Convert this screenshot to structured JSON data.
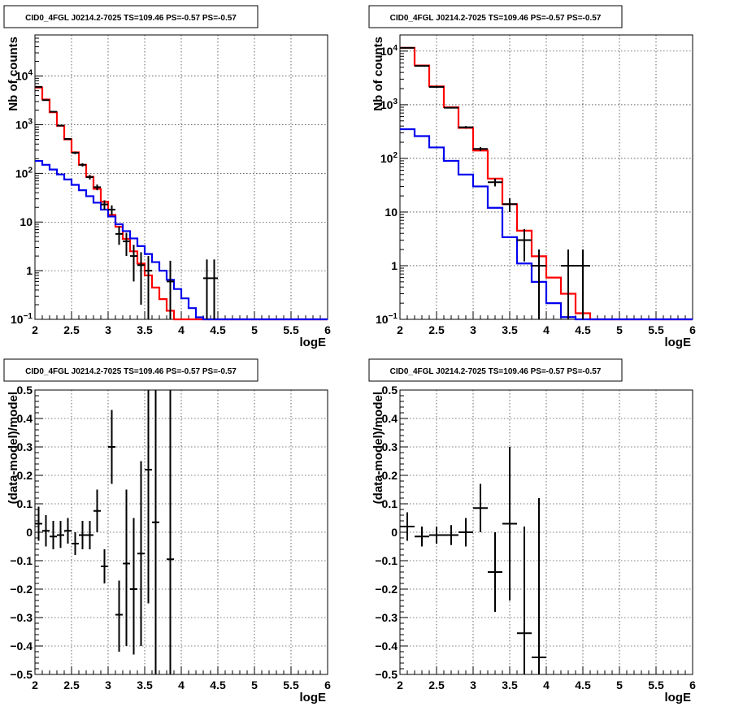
{
  "chart_data": [
    {
      "type": "histogram",
      "title": "CID0_4FGL J0214.2-7025 TS=109.46 PS=-0.57 PS=-0.57",
      "xlabel": "logE",
      "ylabel": "Nb of counts",
      "log_y": true,
      "xlim": [
        2,
        6
      ],
      "ylim": [
        0.1,
        70000
      ],
      "grid": true,
      "x_ticks": [
        "2",
        "2.5",
        "3",
        "3.5",
        "4",
        "4.5",
        "5",
        "5.5",
        "6"
      ],
      "y_ticks": [
        {
          "value": 0.1,
          "label": "10",
          "sup": "−1"
        },
        {
          "value": 1,
          "label": "1",
          "sup": ""
        },
        {
          "value": 10,
          "label": "10",
          "sup": ""
        },
        {
          "value": 100,
          "label": "10",
          "sup": "2"
        },
        {
          "value": 1000,
          "label": "10",
          "sup": "3"
        },
        {
          "value": 10000,
          "label": "10",
          "sup": "4"
        }
      ],
      "bin_edges": [
        2.0,
        2.1,
        2.2,
        2.3,
        2.4,
        2.5,
        2.6,
        2.7,
        2.8,
        2.9,
        3.0,
        3.1,
        3.2,
        3.3,
        3.4,
        3.5,
        3.6,
        3.7,
        3.8,
        3.9,
        4.0,
        4.1,
        4.2,
        4.3,
        4.4,
        4.5,
        4.6,
        4.7,
        4.8,
        4.9,
        5.0,
        5.1,
        5.2,
        5.3,
        5.4,
        5.5,
        5.6,
        5.7,
        5.8,
        5.9,
        6.0
      ],
      "series": [
        {
          "color": "#ff0000",
          "kind": "step",
          "values": [
            5800,
            3300,
            1800,
            950,
            500,
            270,
            150,
            85,
            48,
            26,
            14,
            8,
            4.5,
            2.5,
            1.4,
            0.8,
            0.45,
            0.26,
            0.15,
            0.09,
            0.09,
            0.09,
            0.09,
            0.09,
            0.09,
            0.09,
            0.09,
            0.09,
            0.09,
            0.09,
            0.09,
            0.09,
            0.09,
            0.09,
            0.09,
            0.09,
            0.09,
            0.09,
            0.09,
            0.09
          ]
        },
        {
          "color": "#0000ee",
          "kind": "step",
          "values": [
            180,
            150,
            120,
            95,
            75,
            58,
            45,
            34,
            25,
            18,
            13,
            9,
            6.5,
            4.6,
            3.2,
            2.2,
            1.5,
            1.0,
            0.65,
            0.42,
            0.27,
            0.17,
            0.11,
            0.1,
            0.1,
            0.1,
            0.1,
            0.1,
            0.1,
            0.1,
            0.1,
            0.1,
            0.1,
            0.1,
            0.1,
            0.1,
            0.1,
            0.1,
            0.1,
            0.1
          ]
        },
        {
          "color": "#000000",
          "kind": "points",
          "points": [
            {
              "x": 2.05,
              "y": 6000,
              "ylo": 5900,
              "yhi": 6100,
              "xerr": 0.05
            },
            {
              "x": 2.15,
              "y": 3200,
              "ylo": 3140,
              "yhi": 3260,
              "xerr": 0.05
            },
            {
              "x": 2.25,
              "y": 1850,
              "ylo": 1800,
              "yhi": 1900,
              "xerr": 0.05
            },
            {
              "x": 2.35,
              "y": 960,
              "ylo": 930,
              "yhi": 990,
              "xerr": 0.05
            },
            {
              "x": 2.45,
              "y": 510,
              "ylo": 488,
              "yhi": 532,
              "xerr": 0.05
            },
            {
              "x": 2.55,
              "y": 265,
              "ylo": 249,
              "yhi": 281,
              "xerr": 0.05
            },
            {
              "x": 2.65,
              "y": 150,
              "ylo": 138,
              "yhi": 162,
              "xerr": 0.05
            },
            {
              "x": 2.75,
              "y": 84,
              "ylo": 75,
              "yhi": 93,
              "xerr": 0.05
            },
            {
              "x": 2.85,
              "y": 52,
              "ylo": 45,
              "yhi": 59,
              "xerr": 0.05
            },
            {
              "x": 2.95,
              "y": 23,
              "ylo": 18,
              "yhi": 28,
              "xerr": 0.05
            },
            {
              "x": 3.05,
              "y": 18,
              "ylo": 14,
              "yhi": 22,
              "xerr": 0.05
            },
            {
              "x": 3.15,
              "y": 5.7,
              "ylo": 3.4,
              "yhi": 8.1,
              "xerr": 0.05
            },
            {
              "x": 3.25,
              "y": 4,
              "ylo": 2.0,
              "yhi": 6.0,
              "xerr": 0.05
            },
            {
              "x": 3.35,
              "y": 2,
              "ylo": 0.6,
              "yhi": 3.4,
              "xerr": 0.05
            },
            {
              "x": 3.45,
              "y": 1.3,
              "ylo": 0.2,
              "yhi": 2.4,
              "xerr": 0.05
            },
            {
              "x": 3.55,
              "y": 1,
              "ylo": 0.1,
              "yhi": 2.0,
              "xerr": 0.05
            },
            {
              "x": 3.85,
              "y": 0.6,
              "ylo": 0.1,
              "yhi": 1.6,
              "xerr": 0.05
            },
            {
              "x": 4.35,
              "y": 0.7,
              "ylo": 0.1,
              "yhi": 1.7,
              "xerr": 0.05
            },
            {
              "x": 4.45,
              "y": 0.7,
              "ylo": 0.1,
              "yhi": 1.7,
              "xerr": 0.05
            }
          ]
        }
      ]
    },
    {
      "type": "histogram",
      "title": "CID0_4FGL J0214.2-7025 TS=109.46 PS=-0.57 PS=-0.57",
      "xlabel": "logE",
      "ylabel": "Nb of counts",
      "log_y": true,
      "xlim": [
        2,
        6
      ],
      "ylim": [
        0.1,
        20000
      ],
      "grid": true,
      "x_ticks": [
        "2",
        "2.5",
        "3",
        "3.5",
        "4",
        "4.5",
        "5",
        "5.5",
        "6"
      ],
      "y_ticks": [
        {
          "value": 0.1,
          "label": "10",
          "sup": "−1"
        },
        {
          "value": 1,
          "label": "1",
          "sup": ""
        },
        {
          "value": 10,
          "label": "10",
          "sup": ""
        },
        {
          "value": 100,
          "label": "10",
          "sup": "2"
        },
        {
          "value": 1000,
          "label": "10",
          "sup": "3"
        },
        {
          "value": 10000,
          "label": "10",
          "sup": "4"
        }
      ],
      "bin_edges": [
        2.0,
        2.2,
        2.4,
        2.6,
        2.8,
        3.0,
        3.2,
        3.4,
        3.6,
        3.8,
        4.0,
        4.2,
        4.4,
        4.6,
        4.8,
        5.0,
        5.2,
        5.4,
        5.6,
        5.8,
        6.0
      ],
      "series": [
        {
          "color": "#ff0000",
          "kind": "step",
          "values": [
            11500,
            5400,
            2200,
            900,
            370,
            140,
            42,
            14,
            4.5,
            1.5,
            0.6,
            0.3,
            0.13,
            0.1,
            0.1,
            0.1,
            0.1,
            0.1,
            0.1,
            0.1
          ]
        },
        {
          "color": "#0000ee",
          "kind": "step",
          "values": [
            350,
            260,
            160,
            90,
            50,
            30,
            12,
            3.4,
            1.1,
            0.5,
            0.2,
            0.11,
            0.1,
            0.1,
            0.1,
            0.1,
            0.1,
            0.1,
            0.1,
            0.1
          ]
        },
        {
          "color": "#000000",
          "kind": "points",
          "points": [
            {
              "x": 2.1,
              "y": 11500,
              "ylo": 11300,
              "yhi": 11700,
              "xerr": 0.1
            },
            {
              "x": 2.3,
              "y": 5300,
              "ylo": 5150,
              "yhi": 5450,
              "xerr": 0.1
            },
            {
              "x": 2.5,
              "y": 2150,
              "ylo": 2050,
              "yhi": 2250,
              "xerr": 0.1
            },
            {
              "x": 2.7,
              "y": 880,
              "ylo": 850,
              "yhi": 910,
              "xerr": 0.1
            },
            {
              "x": 2.9,
              "y": 380,
              "ylo": 360,
              "yhi": 400,
              "xerr": 0.1
            },
            {
              "x": 3.1,
              "y": 150,
              "ylo": 138,
              "yhi": 162,
              "xerr": 0.1
            },
            {
              "x": 3.3,
              "y": 36,
              "ylo": 30,
              "yhi": 42,
              "xerr": 0.1
            },
            {
              "x": 3.5,
              "y": 14,
              "ylo": 10,
              "yhi": 18,
              "xerr": 0.1
            },
            {
              "x": 3.7,
              "y": 3,
              "ylo": 1.2,
              "yhi": 4.8,
              "xerr": 0.1
            },
            {
              "x": 3.9,
              "y": 1,
              "ylo": 0.1,
              "yhi": 2.0,
              "xerr": 0.1
            },
            {
              "x": 4.3,
              "y": 1,
              "ylo": 0.1,
              "yhi": 2.0,
              "xerr": 0.1
            },
            {
              "x": 4.5,
              "y": 1,
              "ylo": 0.1,
              "yhi": 2.0,
              "xerr": 0.1
            }
          ]
        }
      ]
    },
    {
      "type": "scatter",
      "title": "CID0_4FGL J0214.2-7025 TS=109.46 PS=-0.57 PS=-0.57",
      "xlabel": "logE",
      "ylabel": "(data-model)/model",
      "log_y": false,
      "xlim": [
        2,
        6
      ],
      "ylim": [
        -0.5,
        0.5
      ],
      "grid": true,
      "x_ticks": [
        "2",
        "2.5",
        "3",
        "3.5",
        "4",
        "4.5",
        "5",
        "5.5",
        "6"
      ],
      "y_ticks": [
        {
          "value": -0.5,
          "label": "−0.5",
          "sup": ""
        },
        {
          "value": -0.4,
          "label": "−0.4",
          "sup": ""
        },
        {
          "value": -0.3,
          "label": "−0.3",
          "sup": ""
        },
        {
          "value": -0.2,
          "label": "−0.2",
          "sup": ""
        },
        {
          "value": -0.1,
          "label": "−0.1",
          "sup": ""
        },
        {
          "value": 0,
          "label": "0",
          "sup": ""
        },
        {
          "value": 0.1,
          "label": "0.1",
          "sup": ""
        },
        {
          "value": 0.2,
          "label": "0.2",
          "sup": ""
        },
        {
          "value": 0.3,
          "label": "0.3",
          "sup": ""
        },
        {
          "value": 0.4,
          "label": "0.4",
          "sup": ""
        },
        {
          "value": 0.5,
          "label": "0.5",
          "sup": ""
        }
      ],
      "series": [
        {
          "color": "#000000",
          "kind": "points",
          "points": [
            {
              "x": 2.05,
              "y": 0.03,
              "ylo": -0.03,
              "yhi": 0.09,
              "xerr": 0.05
            },
            {
              "x": 2.15,
              "y": 0.005,
              "ylo": -0.05,
              "yhi": 0.06,
              "xerr": 0.05
            },
            {
              "x": 2.25,
              "y": -0.015,
              "ylo": -0.06,
              "yhi": 0.04,
              "xerr": 0.05
            },
            {
              "x": 2.35,
              "y": -0.01,
              "ylo": -0.055,
              "yhi": 0.04,
              "xerr": 0.05
            },
            {
              "x": 2.45,
              "y": 0.005,
              "ylo": -0.04,
              "yhi": 0.05,
              "xerr": 0.05
            },
            {
              "x": 2.55,
              "y": -0.04,
              "ylo": -0.08,
              "yhi": 0.0,
              "xerr": 0.05
            },
            {
              "x": 2.65,
              "y": -0.01,
              "ylo": -0.06,
              "yhi": 0.04,
              "xerr": 0.05
            },
            {
              "x": 2.75,
              "y": -0.01,
              "ylo": -0.06,
              "yhi": 0.04,
              "xerr": 0.05
            },
            {
              "x": 2.85,
              "y": 0.075,
              "ylo": 0.0,
              "yhi": 0.15,
              "xerr": 0.05
            },
            {
              "x": 2.95,
              "y": -0.12,
              "ylo": -0.18,
              "yhi": -0.06,
              "xerr": 0.05
            },
            {
              "x": 3.05,
              "y": 0.3,
              "ylo": 0.17,
              "yhi": 0.43,
              "xerr": 0.05
            },
            {
              "x": 3.15,
              "y": -0.29,
              "ylo": -0.42,
              "yhi": -0.17,
              "xerr": 0.05
            },
            {
              "x": 3.25,
              "y": -0.11,
              "ylo": -0.4,
              "yhi": 0.15,
              "xerr": 0.05
            },
            {
              "x": 3.35,
              "y": -0.2,
              "ylo": -0.43,
              "yhi": 0.05,
              "xerr": 0.05
            },
            {
              "x": 3.45,
              "y": -0.075,
              "ylo": -0.4,
              "yhi": 0.25,
              "xerr": 0.05
            },
            {
              "x": 3.55,
              "y": 0.22,
              "ylo": -0.25,
              "yhi": 0.5,
              "xerr": 0.05
            },
            {
              "x": 3.65,
              "y": 0.035,
              "ylo": -0.5,
              "yhi": 0.5,
              "xerr": 0.05
            },
            {
              "x": 3.85,
              "y": -0.095,
              "ylo": -0.5,
              "yhi": 0.5,
              "xerr": 0.05
            }
          ]
        }
      ]
    },
    {
      "type": "scatter",
      "title": "CID0_4FGL J0214.2-7025 TS=109.46 PS=-0.57 PS=-0.57",
      "xlabel": "logE",
      "ylabel": "(data-model)/model",
      "log_y": false,
      "xlim": [
        2,
        6
      ],
      "ylim": [
        -0.5,
        0.5
      ],
      "grid": true,
      "x_ticks": [
        "2",
        "2.5",
        "3",
        "3.5",
        "4",
        "4.5",
        "5",
        "5.5",
        "6"
      ],
      "y_ticks": [
        {
          "value": -0.5,
          "label": "−0.5",
          "sup": ""
        },
        {
          "value": -0.4,
          "label": "−0.4",
          "sup": ""
        },
        {
          "value": -0.3,
          "label": "−0.3",
          "sup": ""
        },
        {
          "value": -0.2,
          "label": "−0.2",
          "sup": ""
        },
        {
          "value": -0.1,
          "label": "−0.1",
          "sup": ""
        },
        {
          "value": 0,
          "label": "0",
          "sup": ""
        },
        {
          "value": 0.1,
          "label": "0.1",
          "sup": ""
        },
        {
          "value": 0.2,
          "label": "0.2",
          "sup": ""
        },
        {
          "value": 0.3,
          "label": "0.3",
          "sup": ""
        },
        {
          "value": 0.4,
          "label": "0.4",
          "sup": ""
        },
        {
          "value": 0.5,
          "label": "0.5",
          "sup": ""
        }
      ],
      "series": [
        {
          "color": "#000000",
          "kind": "points",
          "points": [
            {
              "x": 2.1,
              "y": 0.02,
              "ylo": -0.03,
              "yhi": 0.07,
              "xerr": 0.1
            },
            {
              "x": 2.3,
              "y": -0.015,
              "ylo": -0.05,
              "yhi": 0.02,
              "xerr": 0.1
            },
            {
              "x": 2.5,
              "y": -0.01,
              "ylo": -0.04,
              "yhi": 0.02,
              "xerr": 0.1
            },
            {
              "x": 2.7,
              "y": -0.01,
              "ylo": -0.045,
              "yhi": 0.025,
              "xerr": 0.1
            },
            {
              "x": 2.9,
              "y": 0.0,
              "ylo": -0.05,
              "yhi": 0.05,
              "xerr": 0.1
            },
            {
              "x": 3.1,
              "y": 0.085,
              "ylo": 0.0,
              "yhi": 0.17,
              "xerr": 0.1
            },
            {
              "x": 3.3,
              "y": -0.14,
              "ylo": -0.28,
              "yhi": 0.0,
              "xerr": 0.1
            },
            {
              "x": 3.5,
              "y": 0.03,
              "ylo": -0.24,
              "yhi": 0.3,
              "xerr": 0.1
            },
            {
              "x": 3.7,
              "y": -0.355,
              "ylo": -0.5,
              "yhi": 0.02,
              "xerr": 0.1
            },
            {
              "x": 3.9,
              "y": -0.44,
              "ylo": -0.5,
              "yhi": 0.12,
              "xerr": 0.1
            }
          ]
        }
      ]
    }
  ]
}
